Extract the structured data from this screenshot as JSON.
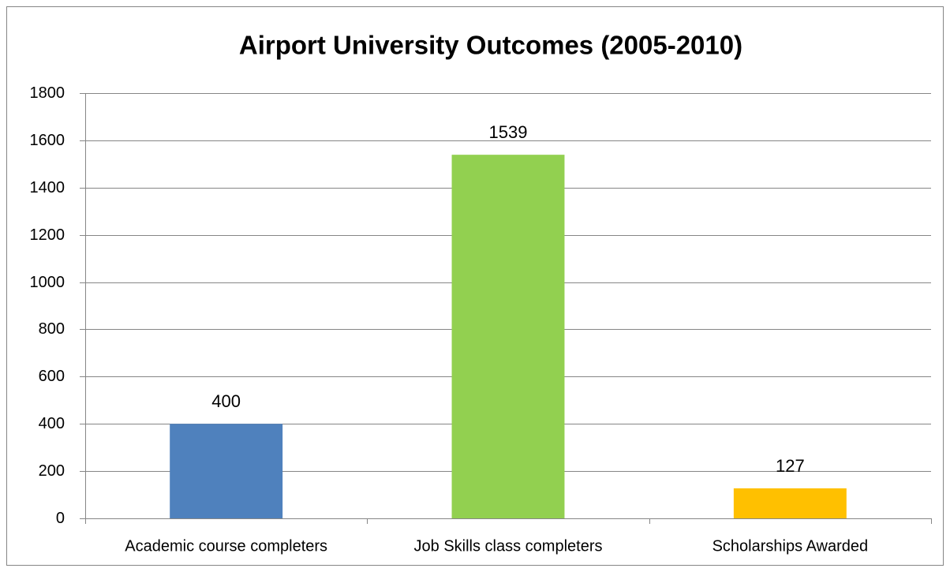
{
  "chart_data": {
    "type": "bar",
    "title": "Airport University Outcomes (2005-2010)",
    "categories": [
      "Academic course completers",
      "Job Skills class completers",
      "Scholarships Awarded"
    ],
    "values": [
      400,
      1539,
      127
    ],
    "colors": [
      "#4f81bd",
      "#92d050",
      "#ffc000"
    ],
    "ylim": [
      0,
      1800
    ],
    "yticks": [
      0,
      200,
      400,
      600,
      800,
      1000,
      1200,
      1400,
      1600,
      1800
    ],
    "grid": true
  }
}
